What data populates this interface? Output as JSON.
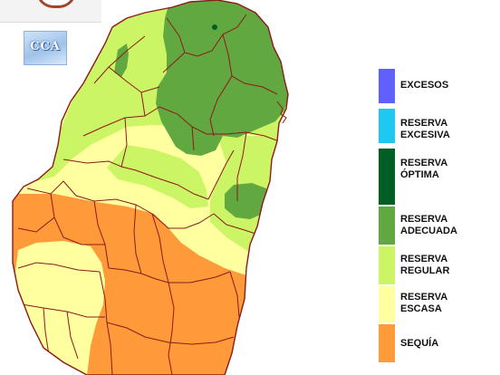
{
  "logo": {
    "text": "CCA"
  },
  "legend": {
    "items": [
      {
        "line1": "EXCESOS",
        "line2": "",
        "color": "#6060ff"
      },
      {
        "line1": "RESERVA",
        "line2": "EXCESIVA",
        "color": "#1ec8f0"
      },
      {
        "line1": "RESERVA",
        "line2": "ÓPTIMA",
        "color": "#005e24"
      },
      {
        "line1": "RESERVA",
        "line2": "ADECUADA",
        "color": "#62a840"
      },
      {
        "line1": "RESERVA",
        "line2": "REGULAR",
        "color": "#ccf566"
      },
      {
        "line1": "RESERVA",
        "line2": "ESCASA",
        "color": "#ffffa0"
      },
      {
        "line1": "SEQUÍA",
        "line2": "",
        "color": "#ff9a3a"
      }
    ]
  },
  "map": {
    "border_color": "#8b1a1a",
    "zones": [
      {
        "name": "escasa-base",
        "category": "RESERVA ESCASA"
      },
      {
        "name": "regular-north",
        "category": "RESERVA REGULAR"
      },
      {
        "name": "regular-northwest-ribbon",
        "category": "RESERVA REGULAR"
      },
      {
        "name": "regular-east",
        "category": "RESERVA REGULAR"
      },
      {
        "name": "adecuada-northeast",
        "category": "RESERVA ADECUADA"
      },
      {
        "name": "adecuada-northwest-spot",
        "category": "RESERVA ADECUADA"
      },
      {
        "name": "adecuada-east-spot",
        "category": "RESERVA ADECUADA"
      },
      {
        "name": "optima-dot",
        "category": "RESERVA ÓPTIMA"
      },
      {
        "name": "sequia-south",
        "category": "SEQUÍA"
      },
      {
        "name": "escasa-southwest",
        "category": "RESERVA ESCASA"
      }
    ]
  }
}
